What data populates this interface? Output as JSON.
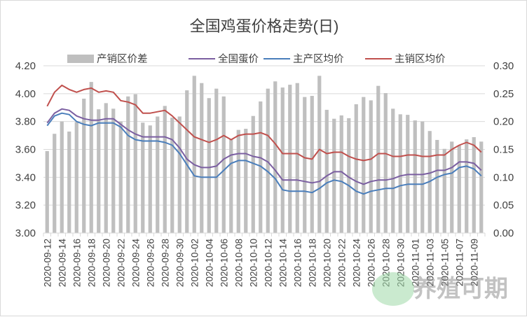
{
  "chart_data": {
    "type": "bar+line",
    "title": "全国鸡蛋价格走势(日)",
    "xlabel": "",
    "ylabel": "",
    "y_left_range": [
      3.0,
      4.2
    ],
    "y_left_ticks": [
      "3.00",
      "3.20",
      "3.40",
      "3.60",
      "3.80",
      "4.00",
      "4.20"
    ],
    "y_right_range": [
      0.0,
      0.3
    ],
    "y_right_ticks": [
      "0.00",
      "0.05",
      "0.10",
      "0.15",
      "0.20",
      "0.25",
      "0.30"
    ],
    "grid": true,
    "legend_position": "top",
    "categories": [
      "2020-09-12",
      "2020-09-13",
      "2020-09-14",
      "2020-09-15",
      "2020-09-16",
      "2020-09-17",
      "2020-09-18",
      "2020-09-19",
      "2020-09-20",
      "2020-09-21",
      "2020-09-22",
      "2020-09-23",
      "2020-09-24",
      "2020-09-25",
      "2020-09-26",
      "2020-09-27",
      "2020-09-28",
      "2020-09-29",
      "2020-09-30",
      "2020-10-01",
      "2020-10-02",
      "2020-10-03",
      "2020-10-04",
      "2020-10-05",
      "2020-10-06",
      "2020-10-07",
      "2020-10-08",
      "2020-10-09",
      "2020-10-10",
      "2020-10-11",
      "2020-10-12",
      "2020-10-13",
      "2020-10-14",
      "2020-10-15",
      "2020-10-16",
      "2020-10-17",
      "2020-10-18",
      "2020-10-19",
      "2020-10-20",
      "2020-10-21",
      "2020-10-22",
      "2020-10-23",
      "2020-10-24",
      "2020-10-25",
      "2020-10-26",
      "2020-10-27",
      "2020-10-28",
      "2020-10-29",
      "2020-10-30",
      "2020-10-31",
      "2020-11-01",
      "2020-11-02",
      "2020-11-03",
      "2020-11-04",
      "2020-11-05",
      "2020-11-06",
      "2020-11-07",
      "2020-11-08",
      "2020-11-09",
      "2020-11-10"
    ],
    "series": [
      {
        "name": "产销区价差",
        "type": "bar",
        "axis": "right",
        "color": "#bfbfbf",
        "values": [
          0.147,
          0.178,
          0.2,
          0.182,
          0.199,
          0.241,
          0.271,
          0.222,
          0.233,
          0.223,
          0.2,
          0.245,
          0.249,
          0.198,
          0.193,
          0.209,
          0.228,
          0.207,
          0.209,
          0.256,
          0.282,
          0.269,
          0.242,
          0.259,
          0.245,
          0.168,
          0.185,
          0.187,
          0.21,
          0.236,
          0.259,
          0.272,
          0.261,
          0.266,
          0.269,
          0.244,
          0.246,
          0.282,
          0.221,
          0.205,
          0.211,
          0.206,
          0.231,
          0.244,
          0.238,
          0.264,
          0.251,
          0.223,
          0.213,
          0.212,
          0.202,
          0.2,
          0.183,
          0.167,
          0.151,
          0.164,
          0.157,
          0.168,
          0.172,
          0.164
        ]
      },
      {
        "name": "全国蛋价",
        "type": "line",
        "axis": "left",
        "color": "#7b5fa1",
        "values": [
          3.79,
          3.86,
          3.89,
          3.88,
          3.84,
          3.82,
          3.81,
          3.81,
          3.82,
          3.82,
          3.78,
          3.74,
          3.71,
          3.69,
          3.69,
          3.69,
          3.69,
          3.67,
          3.61,
          3.53,
          3.49,
          3.47,
          3.47,
          3.48,
          3.53,
          3.56,
          3.57,
          3.57,
          3.55,
          3.54,
          3.51,
          3.45,
          3.38,
          3.38,
          3.38,
          3.37,
          3.36,
          3.37,
          3.41,
          3.44,
          3.44,
          3.4,
          3.37,
          3.35,
          3.37,
          3.38,
          3.38,
          3.39,
          3.41,
          3.42,
          3.42,
          3.42,
          3.43,
          3.45,
          3.45,
          3.47,
          3.51,
          3.51,
          3.5,
          3.45
        ]
      },
      {
        "name": "主产区均价",
        "type": "line",
        "axis": "left",
        "color": "#4a7ebb",
        "values": [
          3.77,
          3.84,
          3.86,
          3.85,
          3.8,
          3.78,
          3.77,
          3.79,
          3.79,
          3.79,
          3.76,
          3.7,
          3.67,
          3.66,
          3.66,
          3.66,
          3.65,
          3.63,
          3.57,
          3.49,
          3.41,
          3.4,
          3.4,
          3.4,
          3.45,
          3.5,
          3.52,
          3.52,
          3.5,
          3.48,
          3.44,
          3.39,
          3.31,
          3.3,
          3.3,
          3.3,
          3.29,
          3.32,
          3.36,
          3.38,
          3.37,
          3.34,
          3.3,
          3.28,
          3.3,
          3.31,
          3.32,
          3.32,
          3.34,
          3.35,
          3.35,
          3.35,
          3.37,
          3.4,
          3.42,
          3.43,
          3.47,
          3.48,
          3.46,
          3.41
        ]
      },
      {
        "name": "主销区均价",
        "type": "line",
        "axis": "left",
        "color": "#c0504d",
        "values": [
          3.91,
          4.01,
          4.06,
          4.03,
          4.01,
          4.03,
          4.04,
          4.01,
          4.02,
          4.01,
          3.95,
          3.94,
          3.92,
          3.86,
          3.86,
          3.87,
          3.88,
          3.84,
          3.79,
          3.74,
          3.69,
          3.67,
          3.65,
          3.67,
          3.7,
          3.67,
          3.7,
          3.71,
          3.71,
          3.72,
          3.7,
          3.64,
          3.57,
          3.57,
          3.57,
          3.54,
          3.53,
          3.6,
          3.57,
          3.58,
          3.58,
          3.55,
          3.53,
          3.52,
          3.53,
          3.57,
          3.57,
          3.55,
          3.55,
          3.56,
          3.56,
          3.55,
          3.55,
          3.56,
          3.56,
          3.6,
          3.63,
          3.65,
          3.63,
          3.58
        ]
      }
    ]
  },
  "watermark": {
    "text": "养殖可期",
    "logo_color": "#8fcf9a"
  }
}
